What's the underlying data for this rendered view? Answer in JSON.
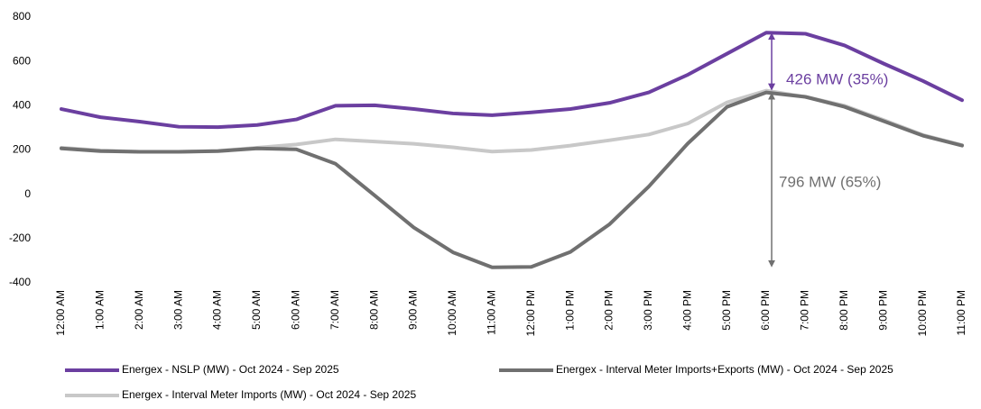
{
  "chart_data": {
    "type": "line",
    "categories": [
      "12:00 AM",
      "1:00 AM",
      "2:00 AM",
      "3:00 AM",
      "4:00 AM",
      "5:00 AM",
      "6:00 AM",
      "7:00 AM",
      "8:00 AM",
      "9:00 AM",
      "10:00 AM",
      "11:00 AM",
      "12:00 PM",
      "1:00 PM",
      "2:00 PM",
      "3:00 PM",
      "4:00 PM",
      "5:00 PM",
      "6:00 PM",
      "7:00 PM",
      "8:00 PM",
      "9:00 PM",
      "10:00 PM",
      "11:00 PM"
    ],
    "series": [
      {
        "name": "Energex - NSLP (MW) - Oct 2024 - Sep 2025",
        "color": "#6b3fa0",
        "values": [
          385,
          348,
          328,
          305,
          303,
          313,
          338,
          400,
          402,
          385,
          365,
          357,
          370,
          385,
          413,
          460,
          540,
          635,
          730,
          725,
          672,
          590,
          512,
          425
        ]
      },
      {
        "name": "Energex - Interval Meter Imports+Exports (MW) - Oct 2024 - Sep 2025",
        "color": "#707070",
        "values": [
          207,
          195,
          192,
          192,
          195,
          207,
          203,
          138,
          -5,
          -150,
          -262,
          -330,
          -328,
          -260,
          -135,
          35,
          230,
          395,
          460,
          440,
          395,
          330,
          265,
          220
        ]
      },
      {
        "name": "Energex - Interval Meter Imports (MW) - Oct 2024 - Sep 2025",
        "color": "#c8c8c8",
        "values": [
          210,
          198,
          192,
          192,
          196,
          210,
          225,
          248,
          238,
          228,
          212,
          193,
          200,
          220,
          244,
          270,
          320,
          415,
          468,
          440,
          400,
          335,
          268,
          222
        ]
      }
    ],
    "annotations": [
      "426 MW (35%)",
      "796 MW (65%)"
    ],
    "ylim": [
      -400,
      800
    ],
    "yticks": [
      -400,
      -200,
      0,
      200,
      400,
      600,
      800
    ],
    "grid": false
  }
}
